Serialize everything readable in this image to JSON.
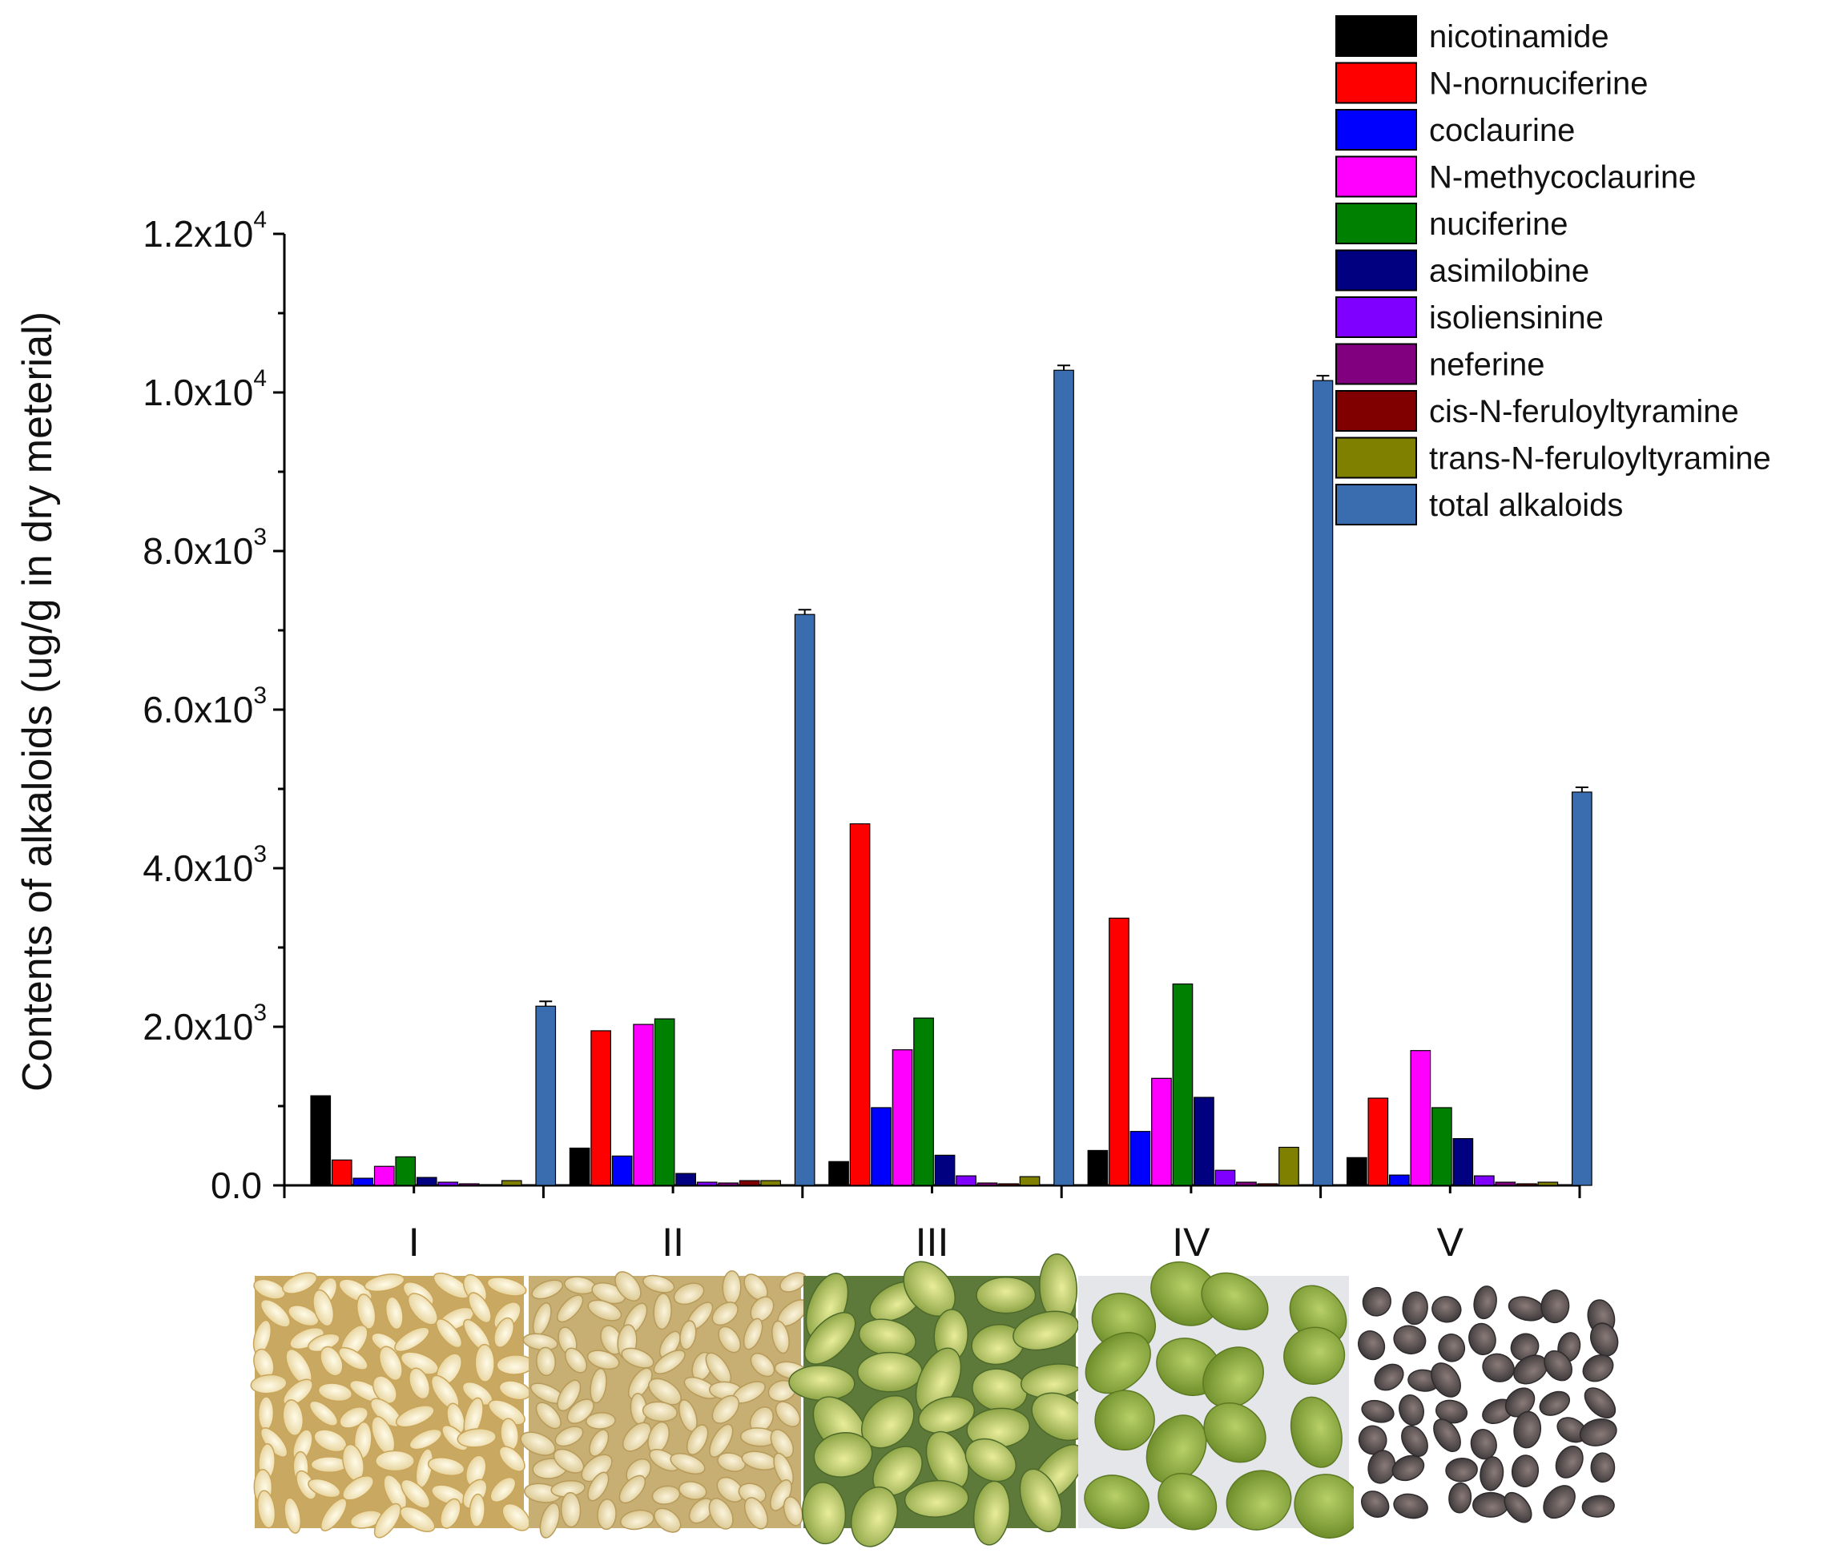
{
  "chart_data": {
    "type": "bar",
    "ylabel": "Contents of alkaloids (ug/g in dry meterial)",
    "xlabel": "",
    "ylim": [
      0,
      12000
    ],
    "yticks": [
      {
        "value": 0,
        "label": "0.0",
        "exp": ""
      },
      {
        "value": 2000,
        "label": "2.0x10",
        "exp": "3"
      },
      {
        "value": 4000,
        "label": "4.0x10",
        "exp": "3"
      },
      {
        "value": 6000,
        "label": "6.0x10",
        "exp": "3"
      },
      {
        "value": 8000,
        "label": "8.0x10",
        "exp": "3"
      },
      {
        "value": 10000,
        "label": "1.0x10",
        "exp": "4"
      },
      {
        "value": 12000,
        "label": "1.2x10",
        "exp": "4"
      }
    ],
    "categories": [
      "I",
      "II",
      "III",
      "IV",
      "V"
    ],
    "legend_position": "top-right",
    "series": [
      {
        "name": "nicotinamide",
        "color": "#000000",
        "values": [
          1130,
          470,
          300,
          440,
          350
        ]
      },
      {
        "name": "N-nornuciferine",
        "color": "#ff0000",
        "values": [
          320,
          1950,
          4560,
          3370,
          1100
        ]
      },
      {
        "name": "coclaurine",
        "color": "#0000ff",
        "values": [
          90,
          370,
          980,
          680,
          130
        ]
      },
      {
        "name": "N-methycoclaurine",
        "color": "#ff00ff",
        "values": [
          240,
          2030,
          1710,
          1350,
          1700
        ]
      },
      {
        "name": "nuciferine",
        "color": "#008000",
        "values": [
          360,
          2100,
          2110,
          2540,
          980
        ]
      },
      {
        "name": "asimilobine",
        "color": "#000080",
        "values": [
          100,
          150,
          380,
          1110,
          590
        ]
      },
      {
        "name": "isoliensinine",
        "color": "#8000ff",
        "values": [
          40,
          40,
          120,
          190,
          120
        ]
      },
      {
        "name": "neferine",
        "color": "#800080",
        "values": [
          20,
          30,
          30,
          40,
          40
        ]
      },
      {
        "name": "cis-N-feruloyltyramine",
        "color": "#800000",
        "values": [
          10,
          60,
          20,
          20,
          20
        ]
      },
      {
        "name": "trans-N-feruloyltyramine",
        "color": "#808000",
        "values": [
          60,
          60,
          110,
          480,
          40
        ]
      },
      {
        "name": "total alkaloids",
        "color": "#3a6db0",
        "values": [
          2260,
          7200,
          10280,
          10150,
          4960
        ]
      }
    ]
  }
}
